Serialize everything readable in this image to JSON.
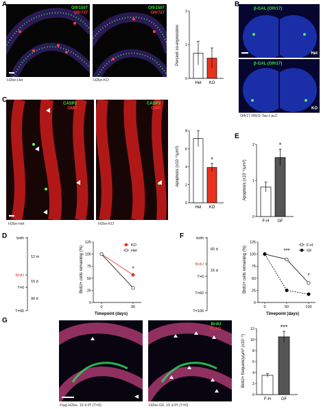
{
  "panels": {
    "A": {
      "letter": "A",
      "stain1": "Olfr1507",
      "stain2": "Olfr727",
      "caption_left": "H2be-Het",
      "caption_right": "H2be-KO",
      "chart_ylabel": "Percent co-expression",
      "chart_yticks": [
        "0",
        "1",
        "2"
      ]
    },
    "B": {
      "letter": "B",
      "stain": "β-GAL (Olfr17)",
      "tag_top": "Het",
      "tag_bottom": "KO",
      "caption": "Olfr17-IRES-Tau-LacZ"
    },
    "C": {
      "letter": "C",
      "stain1": "CASP3",
      "stain2": "OMP",
      "caption_left": "H2be-Het",
      "caption_right": "H2be-KO",
      "chart_ylabel": "Apoptosis (x10⁻⁶/μm³)",
      "chart_yticks": [
        "0",
        "2",
        "4",
        "6",
        "8"
      ],
      "star": "*"
    },
    "D": {
      "letter": "D",
      "timeline": [
        "birth",
        "12 m",
        "BrdU",
        "15 d",
        "T=0",
        "90 d",
        "T=90"
      ],
      "chart_ylabel": "BrdU+ cells remaining (%)",
      "chart_xlabel": "Timepoint (days)",
      "star": "*"
    },
    "E": {
      "letter": "E",
      "chart_ylabel": "Apoptosis (x10⁻⁶/μm³)",
      "chart_yticks": [
        "0",
        "1",
        "2"
      ],
      "star": "*"
    },
    "F": {
      "letter": "F",
      "timeline": [
        "birth",
        "60 d",
        "BrdU",
        "15 d",
        "T=0",
        "T=50",
        "T=100"
      ],
      "chart_ylabel": "BrdU+ cells remaining (%)",
      "chart_xlabel": "Timepoint (days)",
      "star_50": "***",
      "star_100": "*"
    },
    "G": {
      "letter": "G",
      "stain1": "BrdU",
      "stain2": "FLAG",
      "caption_left": "Flag-H2be, 15 d PI (T=0)",
      "caption_right": "H2be-GF, 15 d PI (T=0)",
      "chart_ylabel": "BrdU+ frequency/μm³ (x10⁻⁶)",
      "chart_yticks": [
        "0",
        "2",
        "4",
        "6",
        "8",
        "10",
        "12"
      ],
      "star": "***"
    }
  },
  "chart_data": [
    {
      "id": "A",
      "type": "bar",
      "categories": [
        "Het",
        "KO"
      ],
      "values": [
        0.75,
        0.6
      ],
      "errors": [
        0.35,
        0.3
      ],
      "colors": [
        "#ffffff",
        "#e8321e"
      ],
      "ylabel": "Percent co-expression",
      "ylim": [
        0,
        2
      ]
    },
    {
      "id": "C",
      "type": "bar",
      "categories": [
        "Het",
        "KO"
      ],
      "values": [
        8.0,
        4.4
      ],
      "errors": [
        1.0,
        0.5
      ],
      "colors": [
        "#ffffff",
        "#e8321e"
      ],
      "ylabel": "Apoptosis (x10⁻⁶/μm³)",
      "ylim": [
        0,
        9
      ]
    },
    {
      "id": "D",
      "type": "line",
      "x": [
        0,
        90
      ],
      "xticks": [
        "0",
        "90"
      ],
      "series": [
        {
          "name": "KO",
          "values": [
            100,
            57
          ],
          "color": "#e8321e"
        },
        {
          "name": "Het",
          "values": [
            100,
            30
          ],
          "color": "#ffffff"
        }
      ],
      "ylabel": "BrdU+ cells remaining (%)",
      "xlabel": "Timepoint (days)",
      "ylim": [
        0,
        125
      ],
      "yticks": [
        0,
        25,
        50,
        75,
        100,
        125
      ]
    },
    {
      "id": "E",
      "type": "bar",
      "categories": [
        "F-H",
        "GF"
      ],
      "values": [
        0.9,
        1.8
      ],
      "errors": [
        0.15,
        0.25
      ],
      "colors": [
        "#ffffff",
        "#555555"
      ],
      "ylabel": "Apoptosis (x10⁻⁶/μm³)",
      "ylim": [
        0,
        2.2
      ]
    },
    {
      "id": "F",
      "type": "line",
      "x": [
        0,
        50,
        100
      ],
      "xticks": [
        "0",
        "50",
        "100"
      ],
      "series": [
        {
          "name": "F-H",
          "values": [
            100,
            89,
            40
          ],
          "color": "#ffffff"
        },
        {
          "name": "GF",
          "values": [
            100,
            25,
            17
          ],
          "color": "#000000"
        }
      ],
      "ylabel": "BrdU+ cells remaining (%)",
      "xlabel": "Timepoint (days)",
      "ylim": [
        0,
        125
      ],
      "yticks": [
        0,
        25,
        50,
        75,
        100,
        125
      ]
    },
    {
      "id": "G",
      "type": "bar",
      "categories": [
        "F-H",
        "GF"
      ],
      "values": [
        3.5,
        10.5
      ],
      "errors": [
        0.3,
        1.0
      ],
      "colors": [
        "#ffffff",
        "#555555"
      ],
      "ylabel": "BrdU+ frequency/μm³ (x10⁻⁶)",
      "ylim": [
        0,
        12
      ]
    }
  ]
}
